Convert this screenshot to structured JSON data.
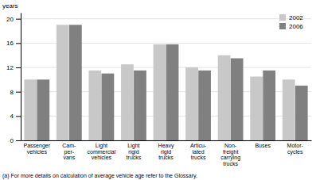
{
  "chart_data": {
    "type": "bar",
    "categories": [
      "Passenger\nvehicles",
      "Cam-\nper-\nvans",
      "Light\ncommercial\nvehicles",
      "Light\nrigid\ntrucks",
      "Heavy\nrigid\ntrucks",
      "Articu-\nlated\ntrucks",
      "Non-\nfreight\ncarrying\ntrucks",
      "Buses",
      "Motor-\ncycles"
    ],
    "series": [
      {
        "name": "2002",
        "color": "#c8c8c8",
        "values": [
          10.0,
          19.0,
          11.5,
          12.5,
          15.8,
          12.0,
          14.0,
          10.5,
          10.0
        ]
      },
      {
        "name": "2006",
        "color": "#808080",
        "values": [
          10.0,
          19.0,
          11.0,
          11.5,
          15.8,
          11.5,
          13.5,
          11.5,
          9.0
        ]
      }
    ],
    "y_label": "years",
    "ylim": [
      0,
      21
    ],
    "yticks": [
      0,
      4,
      8,
      12,
      16,
      20
    ],
    "grid": true,
    "legend": "upper right",
    "annotations": [
      "(a) For more details on calculation of average vehicle age refer to the Glossary."
    ]
  }
}
